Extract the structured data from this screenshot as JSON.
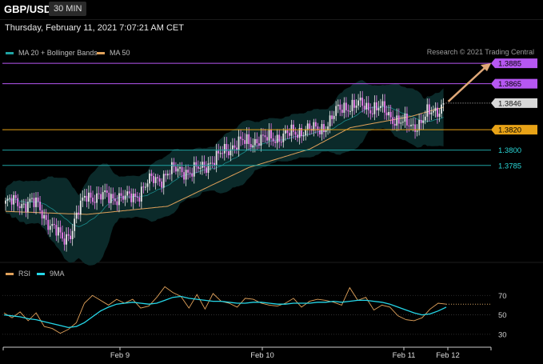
{
  "header": {
    "pair": "GBP/USD",
    "timeframe": "30 MIN",
    "timestamp": "Thursday, February 11, 2021 7:07:21 AM CET",
    "credit": "Research © 2021 Trading Central"
  },
  "legend": {
    "ma20": {
      "label": "MA 20 + Bollinger Bands",
      "color": "#1fa3a3"
    },
    "ma50": {
      "label": "MA 50",
      "color": "#e0a15a"
    },
    "rsi": {
      "label": "RSI",
      "color": "#e0a15a"
    },
    "rsi_ma": {
      "label": "9MA",
      "color": "#25d7e8"
    }
  },
  "colors": {
    "candle_up": "#e7e7e7",
    "candle_down": "#f07ff0",
    "band_fill": "#0c2c2c",
    "resistance": "#b657f2",
    "pivot": "#e8a317",
    "support": "#1fa3a3",
    "arrow": "#e0a878"
  },
  "chart_data": [
    {
      "type": "candlestick",
      "title": "",
      "x_labels": [
        "Feb 9",
        "Feb 10",
        "Feb 11",
        "Feb 12"
      ],
      "ylim": [
        1.369,
        1.39
      ],
      "price_levels": [
        {
          "value": "1.3885",
          "kind": "resistance"
        },
        {
          "value": "1.3865",
          "kind": "resistance"
        },
        {
          "value": "1.3846",
          "kind": "current"
        },
        {
          "value": "1.3820",
          "kind": "pivot"
        },
        {
          "value": "1.3800",
          "kind": "support"
        },
        {
          "value": "1.3785",
          "kind": "support"
        }
      ],
      "price_path": [
        [
          0,
          1.3748
        ],
        [
          4,
          1.3749
        ],
        [
          8,
          1.3748
        ],
        [
          12,
          1.3749
        ],
        [
          16,
          1.3745
        ],
        [
          20,
          1.3733
        ],
        [
          24,
          1.3722
        ],
        [
          28,
          1.3712
        ],
        [
          32,
          1.372
        ],
        [
          36,
          1.374
        ],
        [
          40,
          1.3756
        ],
        [
          44,
          1.3755
        ],
        [
          48,
          1.3754
        ],
        [
          52,
          1.3754
        ],
        [
          56,
          1.3755
        ],
        [
          60,
          1.3752
        ],
        [
          64,
          1.3755
        ],
        [
          68,
          1.3764
        ],
        [
          72,
          1.377
        ],
        [
          76,
          1.3772
        ],
        [
          80,
          1.3778
        ],
        [
          84,
          1.378
        ],
        [
          88,
          1.3781
        ],
        [
          92,
          1.3778
        ],
        [
          96,
          1.3782
        ],
        [
          100,
          1.3788
        ],
        [
          104,
          1.3791
        ],
        [
          108,
          1.3799
        ],
        [
          112,
          1.3805
        ],
        [
          116,
          1.3807
        ],
        [
          120,
          1.3807
        ],
        [
          124,
          1.3811
        ],
        [
          128,
          1.381
        ],
        [
          132,
          1.3812
        ],
        [
          136,
          1.3814
        ],
        [
          140,
          1.3815
        ],
        [
          144,
          1.3818
        ],
        [
          148,
          1.3821
        ],
        [
          152,
          1.3819
        ],
        [
          156,
          1.3822
        ],
        [
          160,
          1.3828
        ],
        [
          164,
          1.3839
        ],
        [
          168,
          1.3844
        ],
        [
          172,
          1.3843
        ],
        [
          176,
          1.3844
        ],
        [
          180,
          1.3842
        ],
        [
          184,
          1.3841
        ],
        [
          188,
          1.3836
        ],
        [
          192,
          1.3831
        ],
        [
          196,
          1.3826
        ],
        [
          200,
          1.3823
        ],
        [
          204,
          1.3827
        ],
        [
          208,
          1.3834
        ],
        [
          212,
          1.3838
        ],
        [
          216,
          1.3846
        ]
      ],
      "ma50_path": [
        [
          0,
          1.374
        ],
        [
          40,
          1.3737
        ],
        [
          80,
          1.3745
        ],
        [
          120,
          1.3783
        ],
        [
          150,
          1.3801
        ],
        [
          170,
          1.3822
        ],
        [
          200,
          1.3833
        ],
        [
          216,
          1.3842
        ]
      ],
      "arrow_target": 1.3885
    },
    {
      "type": "line",
      "title": "",
      "series": [
        {
          "name": "RSI",
          "values": [
            52,
            47,
            53,
            44,
            52,
            38,
            36,
            31,
            35,
            42,
            62,
            70,
            65,
            60,
            66,
            62,
            66,
            57,
            59,
            68,
            79,
            73,
            69,
            57,
            71,
            56,
            72,
            64,
            62,
            58,
            67,
            66,
            62,
            60,
            59,
            62,
            67,
            58,
            64,
            66,
            65,
            63,
            60,
            78,
            65,
            68,
            55,
            60,
            58,
            49,
            45,
            44,
            47,
            56,
            62,
            61
          ]
        },
        {
          "name": "9MA",
          "values": [
            50,
            49,
            48,
            46,
            45,
            43,
            41,
            39,
            37,
            38,
            42,
            48,
            54,
            58,
            61,
            62,
            63,
            62,
            61,
            62,
            65,
            68,
            69,
            67,
            66,
            65,
            64,
            64,
            63,
            62,
            62,
            63,
            63,
            62,
            61,
            61,
            62,
            62,
            62,
            63,
            63,
            64,
            63,
            64,
            65,
            65,
            64,
            63,
            61,
            58,
            55,
            52,
            50,
            51,
            54,
            58
          ]
        }
      ],
      "yticks": [
        "70",
        "50",
        "30"
      ],
      "ylim": [
        20,
        90
      ]
    }
  ]
}
